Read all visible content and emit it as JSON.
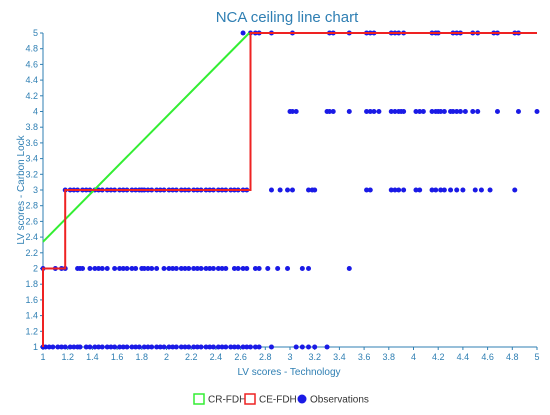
{
  "chart_data": {
    "type": "scatter",
    "title": "NCA ceiling line chart",
    "xlabel": "LV scores - Technology",
    "ylabel": "LV scores - Carbon Lock",
    "xlim": [
      1,
      5
    ],
    "ylim": [
      1,
      5
    ],
    "x_ticks": [
      "1",
      "1.2",
      "1.4",
      "1.6",
      "1.8",
      "2",
      "2.2",
      "2.4",
      "2.6",
      "2.8",
      "3",
      "3.2",
      "3.4",
      "3.6",
      "3.8",
      "4",
      "4.2",
      "4.4",
      "4.6",
      "4.8",
      "5"
    ],
    "y_ticks": [
      "1",
      "1.2",
      "1.4",
      "1.6",
      "1.8",
      "2",
      "2.2",
      "2.4",
      "2.6",
      "2.8",
      "3",
      "3.2",
      "3.4",
      "3.6",
      "3.8",
      "4",
      "4.2",
      "4.4",
      "4.6",
      "4.8",
      "5"
    ],
    "grid": false,
    "legend_position": "bottom",
    "series": [
      {
        "name": "CR-FDH",
        "kind": "line",
        "color": "#33ee33",
        "points": [
          [
            1,
            2.34
          ],
          [
            2.67,
            5
          ]
        ]
      },
      {
        "name": "CE-FDH",
        "kind": "step",
        "color": "#ee2222",
        "points": [
          [
            1,
            1
          ],
          [
            1,
            2
          ],
          [
            1.18,
            2
          ],
          [
            1.18,
            3
          ],
          [
            2.68,
            3
          ],
          [
            2.68,
            5
          ],
          [
            5,
            5
          ]
        ]
      },
      {
        "name": "Observations",
        "kind": "scatter",
        "color": "#1a1ae6",
        "points": [
          [
            1,
            1
          ],
          [
            1.02,
            1
          ],
          [
            1.05,
            1
          ],
          [
            1.08,
            1
          ],
          [
            1.12,
            1
          ],
          [
            1.15,
            1
          ],
          [
            1.18,
            1
          ],
          [
            1.22,
            1
          ],
          [
            1.25,
            1
          ],
          [
            1.28,
            1
          ],
          [
            1.3,
            1
          ],
          [
            1.35,
            1
          ],
          [
            1.38,
            1
          ],
          [
            1.42,
            1
          ],
          [
            1.45,
            1
          ],
          [
            1.48,
            1
          ],
          [
            1.52,
            1
          ],
          [
            1.55,
            1
          ],
          [
            1.58,
            1
          ],
          [
            1.62,
            1
          ],
          [
            1.65,
            1
          ],
          [
            1.68,
            1
          ],
          [
            1.72,
            1
          ],
          [
            1.75,
            1
          ],
          [
            1.78,
            1
          ],
          [
            1.82,
            1
          ],
          [
            1.85,
            1
          ],
          [
            1.88,
            1
          ],
          [
            1.92,
            1
          ],
          [
            1.95,
            1
          ],
          [
            1.98,
            1
          ],
          [
            2.02,
            1
          ],
          [
            2.05,
            1
          ],
          [
            2.08,
            1
          ],
          [
            2.12,
            1
          ],
          [
            2.15,
            1
          ],
          [
            2.18,
            1
          ],
          [
            2.22,
            1
          ],
          [
            2.25,
            1
          ],
          [
            2.28,
            1
          ],
          [
            2.32,
            1
          ],
          [
            2.35,
            1
          ],
          [
            2.38,
            1
          ],
          [
            2.42,
            1
          ],
          [
            2.45,
            1
          ],
          [
            2.48,
            1
          ],
          [
            2.52,
            1
          ],
          [
            2.55,
            1
          ],
          [
            2.58,
            1
          ],
          [
            2.62,
            1
          ],
          [
            2.65,
            1
          ],
          [
            2.68,
            1
          ],
          [
            2.72,
            1
          ],
          [
            2.75,
            1
          ],
          [
            2.85,
            1
          ],
          [
            3.05,
            1
          ],
          [
            3.1,
            1
          ],
          [
            3.15,
            1
          ],
          [
            3.2,
            1
          ],
          [
            3.3,
            1
          ],
          [
            1,
            2
          ],
          [
            1.1,
            2
          ],
          [
            1.15,
            2
          ],
          [
            1.18,
            2
          ],
          [
            1.28,
            2
          ],
          [
            1.3,
            2
          ],
          [
            1.32,
            2
          ],
          [
            1.38,
            2
          ],
          [
            1.42,
            2
          ],
          [
            1.45,
            2
          ],
          [
            1.48,
            2
          ],
          [
            1.52,
            2
          ],
          [
            1.58,
            2
          ],
          [
            1.62,
            2
          ],
          [
            1.65,
            2
          ],
          [
            1.68,
            2
          ],
          [
            1.72,
            2
          ],
          [
            1.75,
            2
          ],
          [
            1.8,
            2
          ],
          [
            1.82,
            2
          ],
          [
            1.85,
            2
          ],
          [
            1.88,
            2
          ],
          [
            1.92,
            2
          ],
          [
            1.98,
            2
          ],
          [
            2.02,
            2
          ],
          [
            2.05,
            2
          ],
          [
            2.08,
            2
          ],
          [
            2.12,
            2
          ],
          [
            2.15,
            2
          ],
          [
            2.18,
            2
          ],
          [
            2.22,
            2
          ],
          [
            2.25,
            2
          ],
          [
            2.28,
            2
          ],
          [
            2.32,
            2
          ],
          [
            2.35,
            2
          ],
          [
            2.38,
            2
          ],
          [
            2.42,
            2
          ],
          [
            2.45,
            2
          ],
          [
            2.48,
            2
          ],
          [
            2.55,
            2
          ],
          [
            2.58,
            2
          ],
          [
            2.62,
            2
          ],
          [
            2.65,
            2
          ],
          [
            2.72,
            2
          ],
          [
            2.75,
            2
          ],
          [
            2.82,
            2
          ],
          [
            2.9,
            2
          ],
          [
            2.98,
            2
          ],
          [
            3.1,
            2
          ],
          [
            3.15,
            2
          ],
          [
            3.48,
            2
          ],
          [
            1.18,
            3
          ],
          [
            1.22,
            3
          ],
          [
            1.25,
            3
          ],
          [
            1.28,
            3
          ],
          [
            1.32,
            3
          ],
          [
            1.35,
            3
          ],
          [
            1.38,
            3
          ],
          [
            1.42,
            3
          ],
          [
            1.45,
            3
          ],
          [
            1.48,
            3
          ],
          [
            1.52,
            3
          ],
          [
            1.55,
            3
          ],
          [
            1.58,
            3
          ],
          [
            1.62,
            3
          ],
          [
            1.65,
            3
          ],
          [
            1.68,
            3
          ],
          [
            1.72,
            3
          ],
          [
            1.75,
            3
          ],
          [
            1.78,
            3
          ],
          [
            1.8,
            3
          ],
          [
            1.82,
            3
          ],
          [
            1.85,
            3
          ],
          [
            1.88,
            3
          ],
          [
            1.92,
            3
          ],
          [
            1.95,
            3
          ],
          [
            1.98,
            3
          ],
          [
            2.02,
            3
          ],
          [
            2.05,
            3
          ],
          [
            2.08,
            3
          ],
          [
            2.12,
            3
          ],
          [
            2.15,
            3
          ],
          [
            2.18,
            3
          ],
          [
            2.22,
            3
          ],
          [
            2.25,
            3
          ],
          [
            2.28,
            3
          ],
          [
            2.32,
            3
          ],
          [
            2.35,
            3
          ],
          [
            2.38,
            3
          ],
          [
            2.42,
            3
          ],
          [
            2.45,
            3
          ],
          [
            2.48,
            3
          ],
          [
            2.52,
            3
          ],
          [
            2.55,
            3
          ],
          [
            2.58,
            3
          ],
          [
            2.62,
            3
          ],
          [
            2.65,
            3
          ],
          [
            2.85,
            3
          ],
          [
            2.92,
            3
          ],
          [
            2.98,
            3
          ],
          [
            3.02,
            3
          ],
          [
            3.15,
            3
          ],
          [
            3.18,
            3
          ],
          [
            3.2,
            3
          ],
          [
            3.62,
            3
          ],
          [
            3.65,
            3
          ],
          [
            3.82,
            3
          ],
          [
            3.85,
            3
          ],
          [
            3.88,
            3
          ],
          [
            3.92,
            3
          ],
          [
            4.02,
            3
          ],
          [
            4.05,
            3
          ],
          [
            4.15,
            3
          ],
          [
            4.18,
            3
          ],
          [
            4.22,
            3
          ],
          [
            4.25,
            3
          ],
          [
            4.3,
            3
          ],
          [
            4.35,
            3
          ],
          [
            4.4,
            3
          ],
          [
            4.5,
            3
          ],
          [
            4.55,
            3
          ],
          [
            4.62,
            3
          ],
          [
            4.82,
            3
          ],
          [
            3,
            4
          ],
          [
            3.02,
            4
          ],
          [
            3.05,
            4
          ],
          [
            3.3,
            4
          ],
          [
            3.32,
            4
          ],
          [
            3.35,
            4
          ],
          [
            3.48,
            4
          ],
          [
            3.62,
            4
          ],
          [
            3.65,
            4
          ],
          [
            3.68,
            4
          ],
          [
            3.72,
            4
          ],
          [
            3.82,
            4
          ],
          [
            3.85,
            4
          ],
          [
            3.88,
            4
          ],
          [
            3.9,
            4
          ],
          [
            3.92,
            4
          ],
          [
            4.02,
            4
          ],
          [
            4.05,
            4
          ],
          [
            4.08,
            4
          ],
          [
            4.15,
            4
          ],
          [
            4.18,
            4
          ],
          [
            4.2,
            4
          ],
          [
            4.22,
            4
          ],
          [
            4.25,
            4
          ],
          [
            4.3,
            4
          ],
          [
            4.32,
            4
          ],
          [
            4.35,
            4
          ],
          [
            4.38,
            4
          ],
          [
            4.42,
            4
          ],
          [
            4.48,
            4
          ],
          [
            4.52,
            4
          ],
          [
            4.68,
            4
          ],
          [
            4.85,
            4
          ],
          [
            5,
            4
          ],
          [
            2.62,
            5
          ],
          [
            2.68,
            5
          ],
          [
            2.72,
            5
          ],
          [
            2.75,
            5
          ],
          [
            2.85,
            5
          ],
          [
            3.02,
            5
          ],
          [
            3.32,
            5
          ],
          [
            3.35,
            5
          ],
          [
            3.48,
            5
          ],
          [
            3.62,
            5
          ],
          [
            3.65,
            5
          ],
          [
            3.68,
            5
          ],
          [
            3.82,
            5
          ],
          [
            3.85,
            5
          ],
          [
            3.88,
            5
          ],
          [
            3.92,
            5
          ],
          [
            4.15,
            5
          ],
          [
            4.18,
            5
          ],
          [
            4.2,
            5
          ],
          [
            4.32,
            5
          ],
          [
            4.35,
            5
          ],
          [
            4.38,
            5
          ],
          [
            4.48,
            5
          ],
          [
            4.52,
            5
          ],
          [
            4.65,
            5
          ],
          [
            4.68,
            5
          ],
          [
            4.82,
            5
          ],
          [
            4.85,
            5
          ]
        ]
      }
    ]
  }
}
